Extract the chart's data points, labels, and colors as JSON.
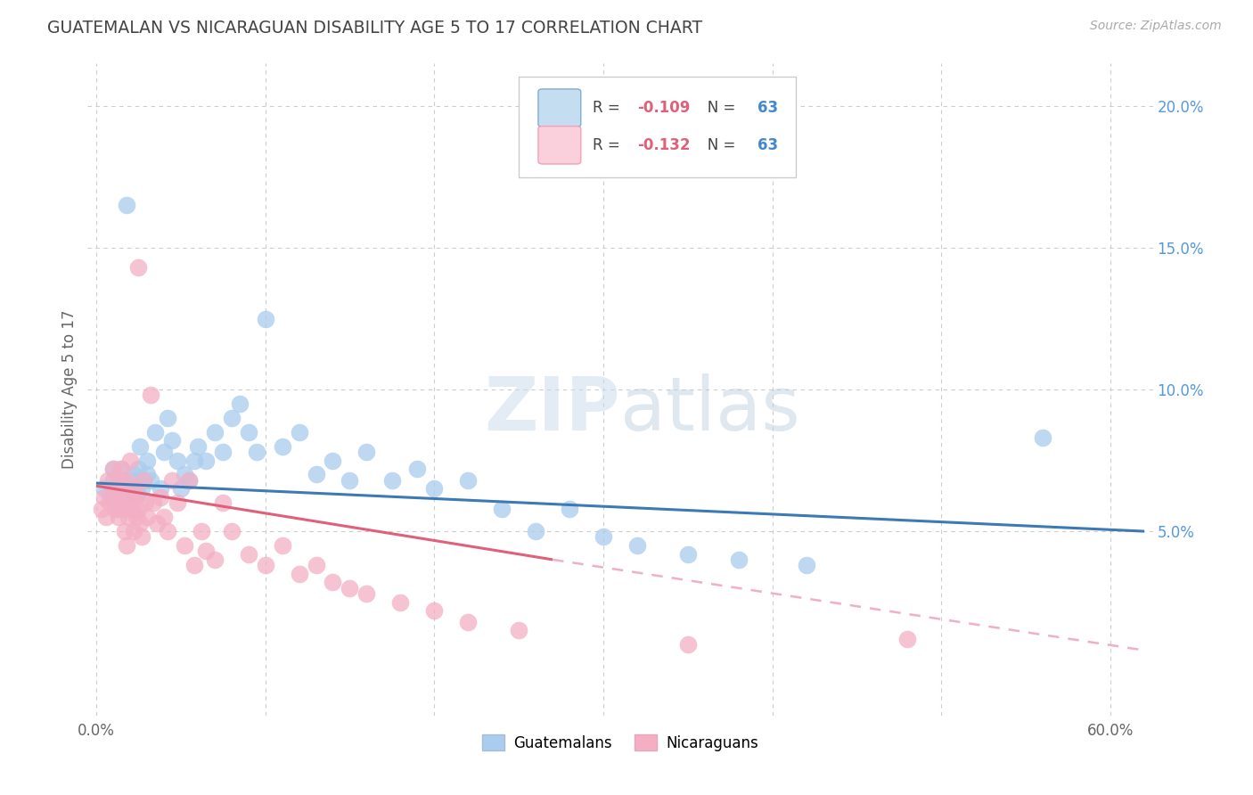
{
  "title": "GUATEMALAN VS NICARAGUAN DISABILITY AGE 5 TO 17 CORRELATION CHART",
  "source": "Source: ZipAtlas.com",
  "ylabel": "Disability Age 5 to 17",
  "x_tick_labels_ends": [
    "0.0%",
    "60.0%"
  ],
  "y_tick_labels_right": [
    "5.0%",
    "10.0%",
    "15.0%",
    "20.0%"
  ],
  "y_ticks_right": [
    0.05,
    0.1,
    0.15,
    0.2
  ],
  "xlim": [
    -0.005,
    0.625
  ],
  "ylim": [
    -0.015,
    0.215
  ],
  "guatemalan_color": "#aaccee",
  "nicaraguan_color": "#f4afc5",
  "trend_guatemalan_color": "#3d7ab5",
  "trend_nicaraguan_solid_color": "#e0607a",
  "trend_nicaraguan_dashed_color": "#f0afc5",
  "background_color": "#ffffff",
  "grid_color": "#cccccc",
  "title_color": "#444444",
  "axis_label_color": "#888888",
  "right_tick_color": "#5599dd",
  "watermark_color": "#ccddeebb",
  "legend_box_edge": "#cccccc",
  "guatemalan_x": [
    0.005,
    0.008,
    0.01,
    0.01,
    0.012,
    0.013,
    0.015,
    0.015,
    0.016,
    0.018,
    0.018,
    0.02,
    0.02,
    0.02,
    0.022,
    0.023,
    0.024,
    0.025,
    0.025,
    0.026,
    0.027,
    0.028,
    0.03,
    0.03,
    0.032,
    0.035,
    0.038,
    0.04,
    0.042,
    0.045,
    0.048,
    0.05,
    0.052,
    0.055,
    0.058,
    0.06,
    0.065,
    0.07,
    0.075,
    0.08,
    0.085,
    0.09,
    0.095,
    0.1,
    0.11,
    0.12,
    0.13,
    0.14,
    0.15,
    0.16,
    0.175,
    0.19,
    0.2,
    0.22,
    0.24,
    0.26,
    0.28,
    0.3,
    0.32,
    0.35,
    0.38,
    0.42,
    0.56
  ],
  "guatemalan_y": [
    0.065,
    0.063,
    0.068,
    0.072,
    0.06,
    0.058,
    0.063,
    0.072,
    0.068,
    0.06,
    0.165,
    0.065,
    0.062,
    0.058,
    0.07,
    0.068,
    0.064,
    0.063,
    0.072,
    0.08,
    0.065,
    0.068,
    0.07,
    0.075,
    0.068,
    0.085,
    0.065,
    0.078,
    0.09,
    0.082,
    0.075,
    0.065,
    0.07,
    0.068,
    0.075,
    0.08,
    0.075,
    0.085,
    0.078,
    0.09,
    0.095,
    0.085,
    0.078,
    0.125,
    0.08,
    0.085,
    0.07,
    0.075,
    0.068,
    0.078,
    0.068,
    0.072,
    0.065,
    0.068,
    0.058,
    0.05,
    0.058,
    0.048,
    0.045,
    0.042,
    0.04,
    0.038,
    0.083
  ],
  "nicaraguan_x": [
    0.003,
    0.005,
    0.006,
    0.007,
    0.008,
    0.01,
    0.01,
    0.011,
    0.012,
    0.013,
    0.013,
    0.014,
    0.015,
    0.015,
    0.016,
    0.017,
    0.018,
    0.018,
    0.019,
    0.02,
    0.02,
    0.021,
    0.022,
    0.022,
    0.023,
    0.024,
    0.025,
    0.025,
    0.026,
    0.027,
    0.028,
    0.029,
    0.03,
    0.032,
    0.034,
    0.036,
    0.038,
    0.04,
    0.042,
    0.045,
    0.048,
    0.052,
    0.055,
    0.058,
    0.062,
    0.065,
    0.07,
    0.075,
    0.08,
    0.09,
    0.1,
    0.11,
    0.12,
    0.13,
    0.14,
    0.15,
    0.16,
    0.18,
    0.2,
    0.22,
    0.25,
    0.35,
    0.48
  ],
  "nicaraguan_y": [
    0.058,
    0.062,
    0.055,
    0.068,
    0.06,
    0.072,
    0.065,
    0.058,
    0.063,
    0.068,
    0.055,
    0.06,
    0.072,
    0.065,
    0.058,
    0.05,
    0.068,
    0.045,
    0.055,
    0.062,
    0.075,
    0.058,
    0.065,
    0.05,
    0.062,
    0.055,
    0.143,
    0.058,
    0.053,
    0.048,
    0.068,
    0.06,
    0.055,
    0.098,
    0.06,
    0.053,
    0.062,
    0.055,
    0.05,
    0.068,
    0.06,
    0.045,
    0.068,
    0.038,
    0.05,
    0.043,
    0.04,
    0.06,
    0.05,
    0.042,
    0.038,
    0.045,
    0.035,
    0.038,
    0.032,
    0.03,
    0.028,
    0.025,
    0.022,
    0.018,
    0.015,
    0.01,
    0.012
  ],
  "trend_guat_x0": 0.0,
  "trend_guat_x1": 0.62,
  "trend_guat_y0": 0.067,
  "trend_guat_y1": 0.05,
  "trend_nica_x0": 0.0,
  "trend_nica_solid_x1": 0.27,
  "trend_nica_dashed_x1": 0.62,
  "trend_nica_y0": 0.066,
  "trend_nica_y_solid_end": 0.04,
  "trend_nica_y_dashed_end": 0.008
}
